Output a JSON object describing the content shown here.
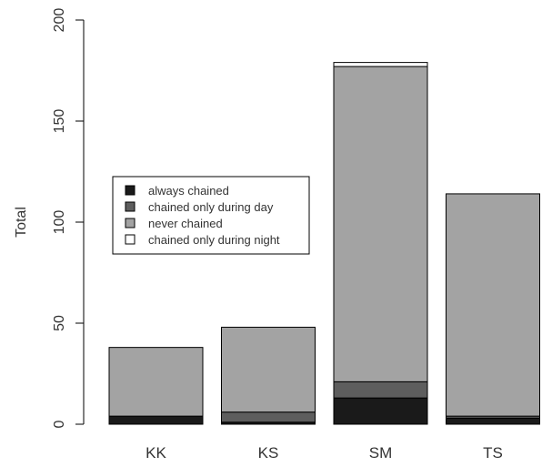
{
  "chart_data": {
    "type": "bar",
    "stacked": true,
    "categories": [
      "KK",
      "KS",
      "SM",
      "TS"
    ],
    "series": [
      {
        "name": "always chained",
        "color": "#1a1a1a",
        "values": [
          4,
          1,
          13,
          3
        ]
      },
      {
        "name": "chained only during day",
        "color": "#5e5e5e",
        "values": [
          0,
          5,
          8,
          1
        ]
      },
      {
        "name": "never chained",
        "color": "#a3a3a3",
        "values": [
          34,
          42,
          156,
          110
        ]
      },
      {
        "name": "chained only during night",
        "color": "#ffffff",
        "values": [
          0,
          0,
          2,
          0
        ]
      }
    ],
    "xlabel": "",
    "ylabel": "Total",
    "ylim": [
      0,
      200
    ],
    "yticks": [
      0,
      50,
      100,
      150,
      200
    ],
    "grid": false,
    "legend_position": "left, mid-height"
  }
}
